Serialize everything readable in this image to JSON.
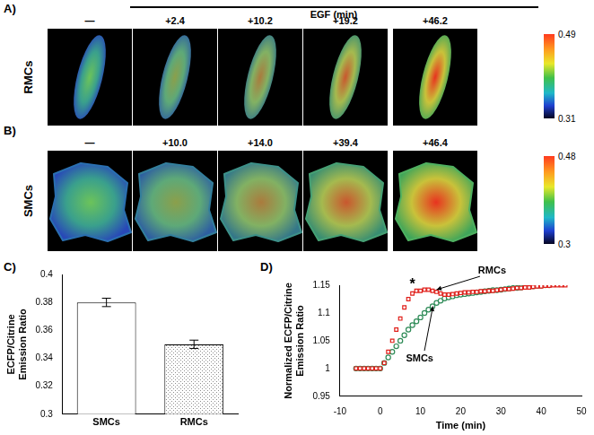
{
  "panels": [
    {
      "label": "A)",
      "row_label": "RMCs",
      "header": "EGF (min)",
      "time_labels": [
        "—",
        "+2.4",
        "+10.2",
        "+19.2",
        "+46.2"
      ],
      "colorbar_range": [
        0.31,
        0.49
      ],
      "colorbar_ticks": [
        0.31,
        0.49
      ]
    },
    {
      "label": "B)",
      "row_label": "SMCs",
      "time_labels": [
        "—",
        "+10.0",
        "+14.0",
        "+39.4",
        "+46.4"
      ],
      "colorbar_range": [
        0.3,
        0.48
      ],
      "colorbar_ticks": [
        0.3,
        0.48
      ]
    }
  ],
  "chart_data": [
    {
      "label": "C)",
      "type": "bar",
      "categories": [
        "SMCs",
        "RMCs"
      ],
      "values": [
        0.38,
        0.35
      ],
      "errors": [
        0.003,
        0.003
      ],
      "colors": [
        "#ffffff",
        "#8c8c8c"
      ],
      "y_label": [
        "ECFP/Citrine",
        "Emission Ratio"
      ],
      "ylim": [
        0.3,
        0.4
      ],
      "yticks": [
        0.3,
        0.32,
        0.34,
        0.36,
        0.38,
        0.4
      ],
      "grid": false
    },
    {
      "label": "D)",
      "type": "scatter",
      "x_label": "Time (min)",
      "y_label": [
        "Normalized ECFP/Citrine",
        "Emission Ratio"
      ],
      "xlim": [
        -10,
        50
      ],
      "xticks": [
        -10,
        0,
        10,
        20,
        30,
        40,
        50
      ],
      "ylim": [
        0.95,
        1.15
      ],
      "yticks": [
        0.95,
        1,
        1.05,
        1.1,
        1.15
      ],
      "grid": false,
      "annotations": [
        "*",
        "RMCs",
        "SMCs"
      ],
      "series": [
        {
          "name": "RMCs",
          "color": "#e0201b",
          "marker": "square",
          "x": [
            -6,
            -5,
            -4,
            -3,
            -2,
            -1,
            0,
            1,
            2,
            3,
            4,
            5,
            6,
            7,
            8,
            9,
            10,
            11,
            12,
            13,
            14,
            15,
            16,
            17,
            18,
            19,
            20,
            21,
            22,
            23,
            24,
            25,
            26,
            27,
            28,
            29,
            30,
            31,
            32,
            33,
            34,
            35,
            36,
            37,
            38,
            39,
            40,
            41,
            42,
            43,
            44,
            45,
            46
          ],
          "values": [
            1,
            1,
            1,
            1,
            1,
            1,
            1,
            1.01,
            1.03,
            1.05,
            1.07,
            1.09,
            1.11,
            1.125,
            1.135,
            1.14,
            1.14,
            1.142,
            1.142,
            1.14,
            1.138,
            1.135,
            1.133,
            1.133,
            1.134,
            1.135,
            1.136,
            1.137,
            1.137,
            1.138,
            1.138,
            1.139,
            1.139,
            1.14,
            1.14,
            1.141,
            1.142,
            1.143,
            1.143,
            1.144,
            1.145,
            1.145,
            1.146,
            1.146,
            1.147,
            1.148,
            1.148,
            1.149,
            1.149,
            1.15,
            1.15,
            1.15,
            1.15
          ]
        },
        {
          "name": "SMCs",
          "color": "#2e8b57",
          "marker": "circle",
          "x": [
            -6,
            -5,
            -4,
            -3,
            -2,
            -1,
            0,
            1,
            2,
            3,
            4,
            5,
            6,
            7,
            8,
            9,
            10,
            11,
            12,
            13,
            14,
            15,
            16,
            17,
            18,
            19,
            20,
            21,
            22,
            23,
            24,
            25,
            26,
            27,
            28,
            29,
            30,
            31,
            32,
            33,
            34,
            35,
            36,
            37,
            38,
            39,
            40,
            41,
            42
          ],
          "values": [
            1,
            1,
            1,
            1,
            1,
            1,
            1,
            1.01,
            1.02,
            1.03,
            1.04,
            1.05,
            1.06,
            1.07,
            1.078,
            1.085,
            1.092,
            1.1,
            1.106,
            1.112,
            1.118,
            1.122,
            1.126,
            1.128,
            1.13,
            1.132,
            1.133,
            1.134,
            1.135,
            1.136,
            1.137,
            1.138,
            1.139,
            1.14,
            1.141,
            1.141,
            1.142,
            1.143,
            1.144,
            1.145,
            1.145,
            1.146,
            1.147,
            1.147,
            1.148,
            1.149,
            1.149,
            1.15,
            1.15
          ]
        }
      ]
    }
  ]
}
